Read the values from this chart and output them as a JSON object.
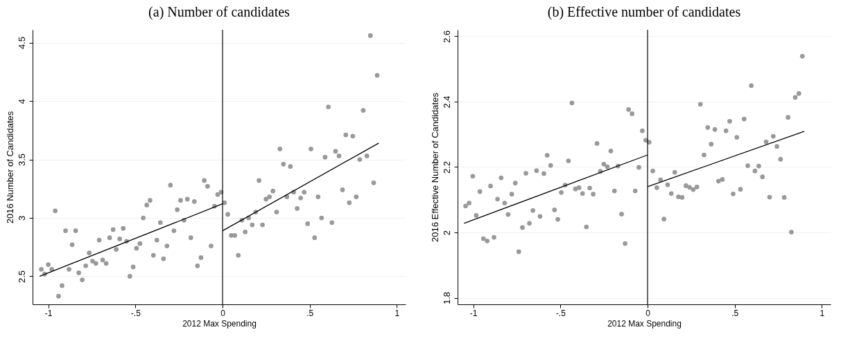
{
  "chart_data": [
    {
      "type": "scatter",
      "title": "(a) Number of candidates",
      "xlabel": "2012 Max Spending",
      "ylabel": "2016 Number of Candidates",
      "xlim": [
        -1.09,
        1.05
      ],
      "ylim": [
        2.26,
        4.61
      ],
      "xticks": [
        {
          "value": -1,
          "label": "-1"
        },
        {
          "value": -0.5,
          "label": "-.5"
        },
        {
          "value": 0,
          "label": "0"
        },
        {
          "value": 0.5,
          "label": ".5"
        },
        {
          "value": 1,
          "label": "1"
        }
      ],
      "yticks": [
        2.5,
        {
          "value": 3,
          "label": "3"
        },
        3.5,
        {
          "value": 4,
          "label": "4"
        },
        4.5
      ],
      "grid": "y",
      "marker": "circle",
      "ref_lines": [
        {
          "axis": "x",
          "value": 0,
          "color": "#000000"
        }
      ],
      "series": [
        {
          "color": "#999999",
          "x": [
            -1.04,
            -1.02,
            -1.0,
            -0.98,
            -0.96,
            -0.941,
            -0.921,
            -0.901,
            -0.881,
            -0.863,
            -0.843,
            -0.825,
            -0.805,
            -0.785,
            -0.765,
            -0.746,
            -0.727,
            -0.708,
            -0.688,
            -0.668,
            -0.648,
            -0.628,
            -0.61,
            -0.59,
            -0.57,
            -0.551,
            -0.532,
            -0.513,
            -0.494,
            -0.474,
            -0.455,
            -0.435,
            -0.416,
            -0.397,
            -0.377,
            -0.357,
            -0.339,
            -0.319,
            -0.299,
            -0.279,
            -0.26,
            -0.241,
            -0.221,
            -0.202,
            -0.182,
            -0.162,
            -0.144,
            -0.124,
            -0.105,
            -0.086,
            -0.066,
            -0.046,
            -0.028,
            -0.008,
            0.011,
            0.03,
            0.05,
            0.07,
            0.09,
            0.111,
            0.13,
            0.15,
            0.17,
            0.19,
            0.209,
            0.229,
            0.249,
            0.269,
            0.289,
            0.31,
            0.329,
            0.349,
            0.369,
            0.389,
            0.408,
            0.428,
            0.448,
            0.468,
            0.488,
            0.507,
            0.528,
            0.548,
            0.568,
            0.588,
            0.607,
            0.627,
            0.648,
            0.668,
            0.688,
            0.707,
            0.727,
            0.747,
            0.767,
            0.787,
            0.807,
            0.828,
            0.848,
            0.867,
            0.887
          ],
          "values": [
            2.56,
            2.52,
            2.6,
            2.56,
            3.06,
            2.33,
            2.42,
            2.89,
            2.56,
            2.77,
            2.89,
            2.53,
            2.47,
            2.59,
            2.7,
            2.63,
            2.61,
            2.81,
            2.64,
            2.61,
            2.83,
            2.9,
            2.73,
            2.82,
            2.91,
            2.8,
            2.5,
            2.58,
            2.74,
            2.78,
            3.0,
            3.11,
            3.15,
            2.68,
            2.81,
            2.96,
            2.65,
            2.76,
            3.28,
            2.89,
            3.07,
            3.15,
            2.98,
            3.16,
            2.83,
            3.14,
            2.59,
            2.66,
            3.32,
            3.27,
            2.76,
            3.1,
            3.2,
            3.22,
            3.13,
            3.03,
            2.85,
            2.85,
            2.68,
            2.98,
            2.88,
            3.0,
            2.94,
            3.05,
            3.32,
            2.94,
            3.16,
            3.18,
            3.23,
            3.05,
            3.59,
            3.46,
            3.18,
            3.44,
            3.22,
            3.08,
            3.17,
            3.22,
            2.95,
            3.59,
            2.83,
            3.18,
            3.0,
            3.52,
            3.95,
            2.96,
            3.57,
            3.53,
            3.24,
            3.71,
            3.13,
            3.7,
            3.18,
            3.5,
            3.92,
            3.53,
            4.56,
            3.3,
            4.22
          ]
        },
        {
          "type": "line",
          "color": "#000000",
          "line_style": "solid",
          "marker": "none",
          "x": [
            -1.049,
            0
          ],
          "values": [
            2.5,
            3.12
          ]
        },
        {
          "type": "line",
          "color": "#000000",
          "line_style": "solid",
          "marker": "none",
          "x": [
            0,
            0.896
          ],
          "values": [
            2.89,
            3.64
          ]
        }
      ]
    },
    {
      "type": "scatter",
      "title": "(b) Effective number of candidates",
      "xlabel": "2012 Max Spending",
      "ylabel": "2016 Effective Number of Candidates",
      "xlim": [
        -1.09,
        1.05
      ],
      "ylim": [
        1.78,
        2.62
      ],
      "xticks": [
        {
          "value": -1,
          "label": "-1"
        },
        {
          "value": -0.5,
          "label": "-.5"
        },
        {
          "value": 0,
          "label": "0"
        },
        {
          "value": 0.5,
          "label": ".5"
        },
        {
          "value": 1,
          "label": "1"
        }
      ],
      "yticks": [
        1.8,
        {
          "value": 2,
          "label": "2"
        },
        2.2,
        2.4,
        2.6
      ],
      "grid": "y",
      "marker": "circle",
      "ref_lines": [
        {
          "axis": "x",
          "value": 0,
          "color": "#000000"
        }
      ],
      "series": [
        {
          "color": "#999999",
          "x": [
            -1.044,
            -1.024,
            -1.003,
            -0.983,
            -0.962,
            -0.942,
            -0.92,
            -0.901,
            -0.881,
            -0.861,
            -0.84,
            -0.82,
            -0.8,
            -0.779,
            -0.759,
            -0.739,
            -0.718,
            -0.698,
            -0.678,
            -0.658,
            -0.637,
            -0.617,
            -0.595,
            -0.576,
            -0.556,
            -0.534,
            -0.515,
            -0.495,
            -0.473,
            -0.454,
            -0.434,
            -0.414,
            -0.393,
            -0.373,
            -0.351,
            -0.332,
            -0.312,
            -0.29,
            -0.271,
            -0.251,
            -0.231,
            -0.211,
            -0.19,
            -0.17,
            -0.149,
            -0.129,
            -0.109,
            -0.089,
            -0.071,
            -0.05,
            -0.03,
            -0.011,
            0.009,
            0.03,
            0.053,
            0.074,
            0.094,
            0.115,
            0.136,
            0.156,
            0.177,
            0.198,
            0.22,
            0.241,
            0.262,
            0.283,
            0.303,
            0.324,
            0.345,
            0.365,
            0.386,
            0.407,
            0.429,
            0.45,
            0.471,
            0.491,
            0.512,
            0.533,
            0.554,
            0.575,
            0.595,
            0.616,
            0.638,
            0.659,
            0.68,
            0.7,
            0.721,
            0.742,
            0.763,
            0.784,
            0.806,
            0.825,
            0.847,
            0.868,
            0.888
          ],
          "values": [
            2.081,
            2.09,
            2.172,
            2.052,
            2.125,
            1.981,
            1.974,
            2.142,
            1.985,
            2.102,
            2.167,
            2.09,
            2.055,
            2.117,
            2.151,
            1.941,
            2.015,
            2.181,
            2.028,
            2.067,
            2.189,
            2.049,
            2.18,
            2.236,
            2.205,
            2.069,
            2.04,
            2.122,
            2.145,
            2.219,
            2.396,
            2.133,
            2.137,
            2.119,
            2.017,
            2.136,
            2.117,
            2.272,
            2.187,
            2.209,
            2.201,
            2.249,
            2.127,
            2.203,
            2.056,
            1.966,
            2.376,
            2.363,
            2.127,
            2.199,
            2.311,
            2.282,
            2.276,
            2.188,
            2.137,
            2.161,
            2.041,
            2.146,
            2.119,
            2.184,
            2.109,
            2.107,
            2.143,
            2.138,
            2.131,
            2.139,
            2.392,
            2.237,
            2.321,
            2.27,
            2.315,
            2.157,
            2.162,
            2.311,
            2.34,
            2.118,
            2.291,
            2.132,
            2.347,
            2.204,
            2.449,
            2.188,
            2.203,
            2.17,
            2.277,
            2.108,
            2.294,
            2.263,
            2.224,
            2.107,
            2.352,
            2.001,
            2.413,
            2.425,
            2.539
          ]
        },
        {
          "type": "line",
          "color": "#000000",
          "line_style": "solid",
          "marker": "none",
          "x": [
            -1.053,
            0
          ],
          "values": [
            2.028,
            2.237
          ]
        },
        {
          "type": "line",
          "color": "#000000",
          "line_style": "solid",
          "marker": "none",
          "x": [
            0,
            0.899
          ],
          "values": [
            2.14,
            2.309
          ]
        }
      ]
    }
  ]
}
